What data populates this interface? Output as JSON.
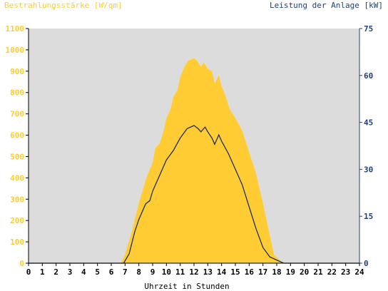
{
  "chart_data": {
    "type": "area",
    "title_left": "Bestrahlungsstärke [W/qm]",
    "title_right": "Leistung der Anlage [kW]",
    "xlabel": "Uhrzeit in Stunden",
    "x_ticks": [
      "0",
      "1",
      "2",
      "3",
      "4",
      "5",
      "6",
      "7",
      "8",
      "9",
      "10",
      "11",
      "12",
      "13",
      "14",
      "15",
      "16",
      "17",
      "18",
      "19",
      "20",
      "21",
      "22",
      "23",
      "24"
    ],
    "xlim": [
      0,
      24
    ],
    "y_left_ticks": [
      "0",
      "100",
      "200",
      "300",
      "400",
      "500",
      "600",
      "700",
      "800",
      "900",
      "1000",
      "1100"
    ],
    "ylim_left": [
      0,
      1100
    ],
    "y_right_ticks": [
      "0",
      "15",
      "30",
      "45",
      "60",
      "75"
    ],
    "ylim_right": [
      0,
      75
    ],
    "grid": false,
    "colors": {
      "irradiance": "#ffcc33",
      "power": "#1f2f5f",
      "left_axis_text": "#ffcc33",
      "right_axis_text": "#1f3f7f",
      "plot_bg": "#dcdcdc"
    },
    "series": [
      {
        "name": "Bestrahlungsstärke",
        "axis": "left",
        "points": [
          [
            0,
            0
          ],
          [
            6.7,
            0
          ],
          [
            7.0,
            40
          ],
          [
            7.5,
            150
          ],
          [
            8.0,
            280
          ],
          [
            8.5,
            390
          ],
          [
            8.8,
            440
          ],
          [
            9.0,
            470
          ],
          [
            9.2,
            540
          ],
          [
            9.5,
            560
          ],
          [
            9.8,
            620
          ],
          [
            10.0,
            680
          ],
          [
            10.3,
            720
          ],
          [
            10.5,
            780
          ],
          [
            10.8,
            810
          ],
          [
            11.0,
            870
          ],
          [
            11.3,
            920
          ],
          [
            11.6,
            950
          ],
          [
            12.0,
            960
          ],
          [
            12.2,
            950
          ],
          [
            12.5,
            920
          ],
          [
            12.7,
            940
          ],
          [
            13.0,
            910
          ],
          [
            13.3,
            900
          ],
          [
            13.5,
            840
          ],
          [
            13.8,
            880
          ],
          [
            14.0,
            830
          ],
          [
            14.3,
            780
          ],
          [
            14.6,
            720
          ],
          [
            15.0,
            680
          ],
          [
            15.5,
            620
          ],
          [
            16.0,
            520
          ],
          [
            16.5,
            420
          ],
          [
            17.0,
            280
          ],
          [
            17.5,
            130
          ],
          [
            17.8,
            40
          ],
          [
            18.2,
            15
          ],
          [
            18.5,
            0
          ],
          [
            24,
            0
          ]
        ]
      },
      {
        "name": "Leistung",
        "axis": "right",
        "points": [
          [
            0,
            0
          ],
          [
            6.9,
            0
          ],
          [
            7.3,
            3
          ],
          [
            7.7,
            10
          ],
          [
            8.0,
            14
          ],
          [
            8.5,
            19
          ],
          [
            8.8,
            20
          ],
          [
            9.0,
            23
          ],
          [
            9.3,
            26
          ],
          [
            9.6,
            29
          ],
          [
            10.0,
            33
          ],
          [
            10.5,
            36
          ],
          [
            11.0,
            40
          ],
          [
            11.5,
            43
          ],
          [
            12.0,
            44
          ],
          [
            12.3,
            43
          ],
          [
            12.5,
            42
          ],
          [
            12.8,
            43.5
          ],
          [
            13.0,
            42
          ],
          [
            13.3,
            40
          ],
          [
            13.5,
            38
          ],
          [
            13.8,
            41
          ],
          [
            14.0,
            39
          ],
          [
            14.5,
            35
          ],
          [
            15.0,
            30
          ],
          [
            15.5,
            25
          ],
          [
            16.0,
            18
          ],
          [
            16.5,
            11
          ],
          [
            17.0,
            5
          ],
          [
            17.5,
            2
          ],
          [
            18.0,
            1
          ],
          [
            18.5,
            0
          ],
          [
            24,
            0
          ]
        ]
      }
    ]
  }
}
